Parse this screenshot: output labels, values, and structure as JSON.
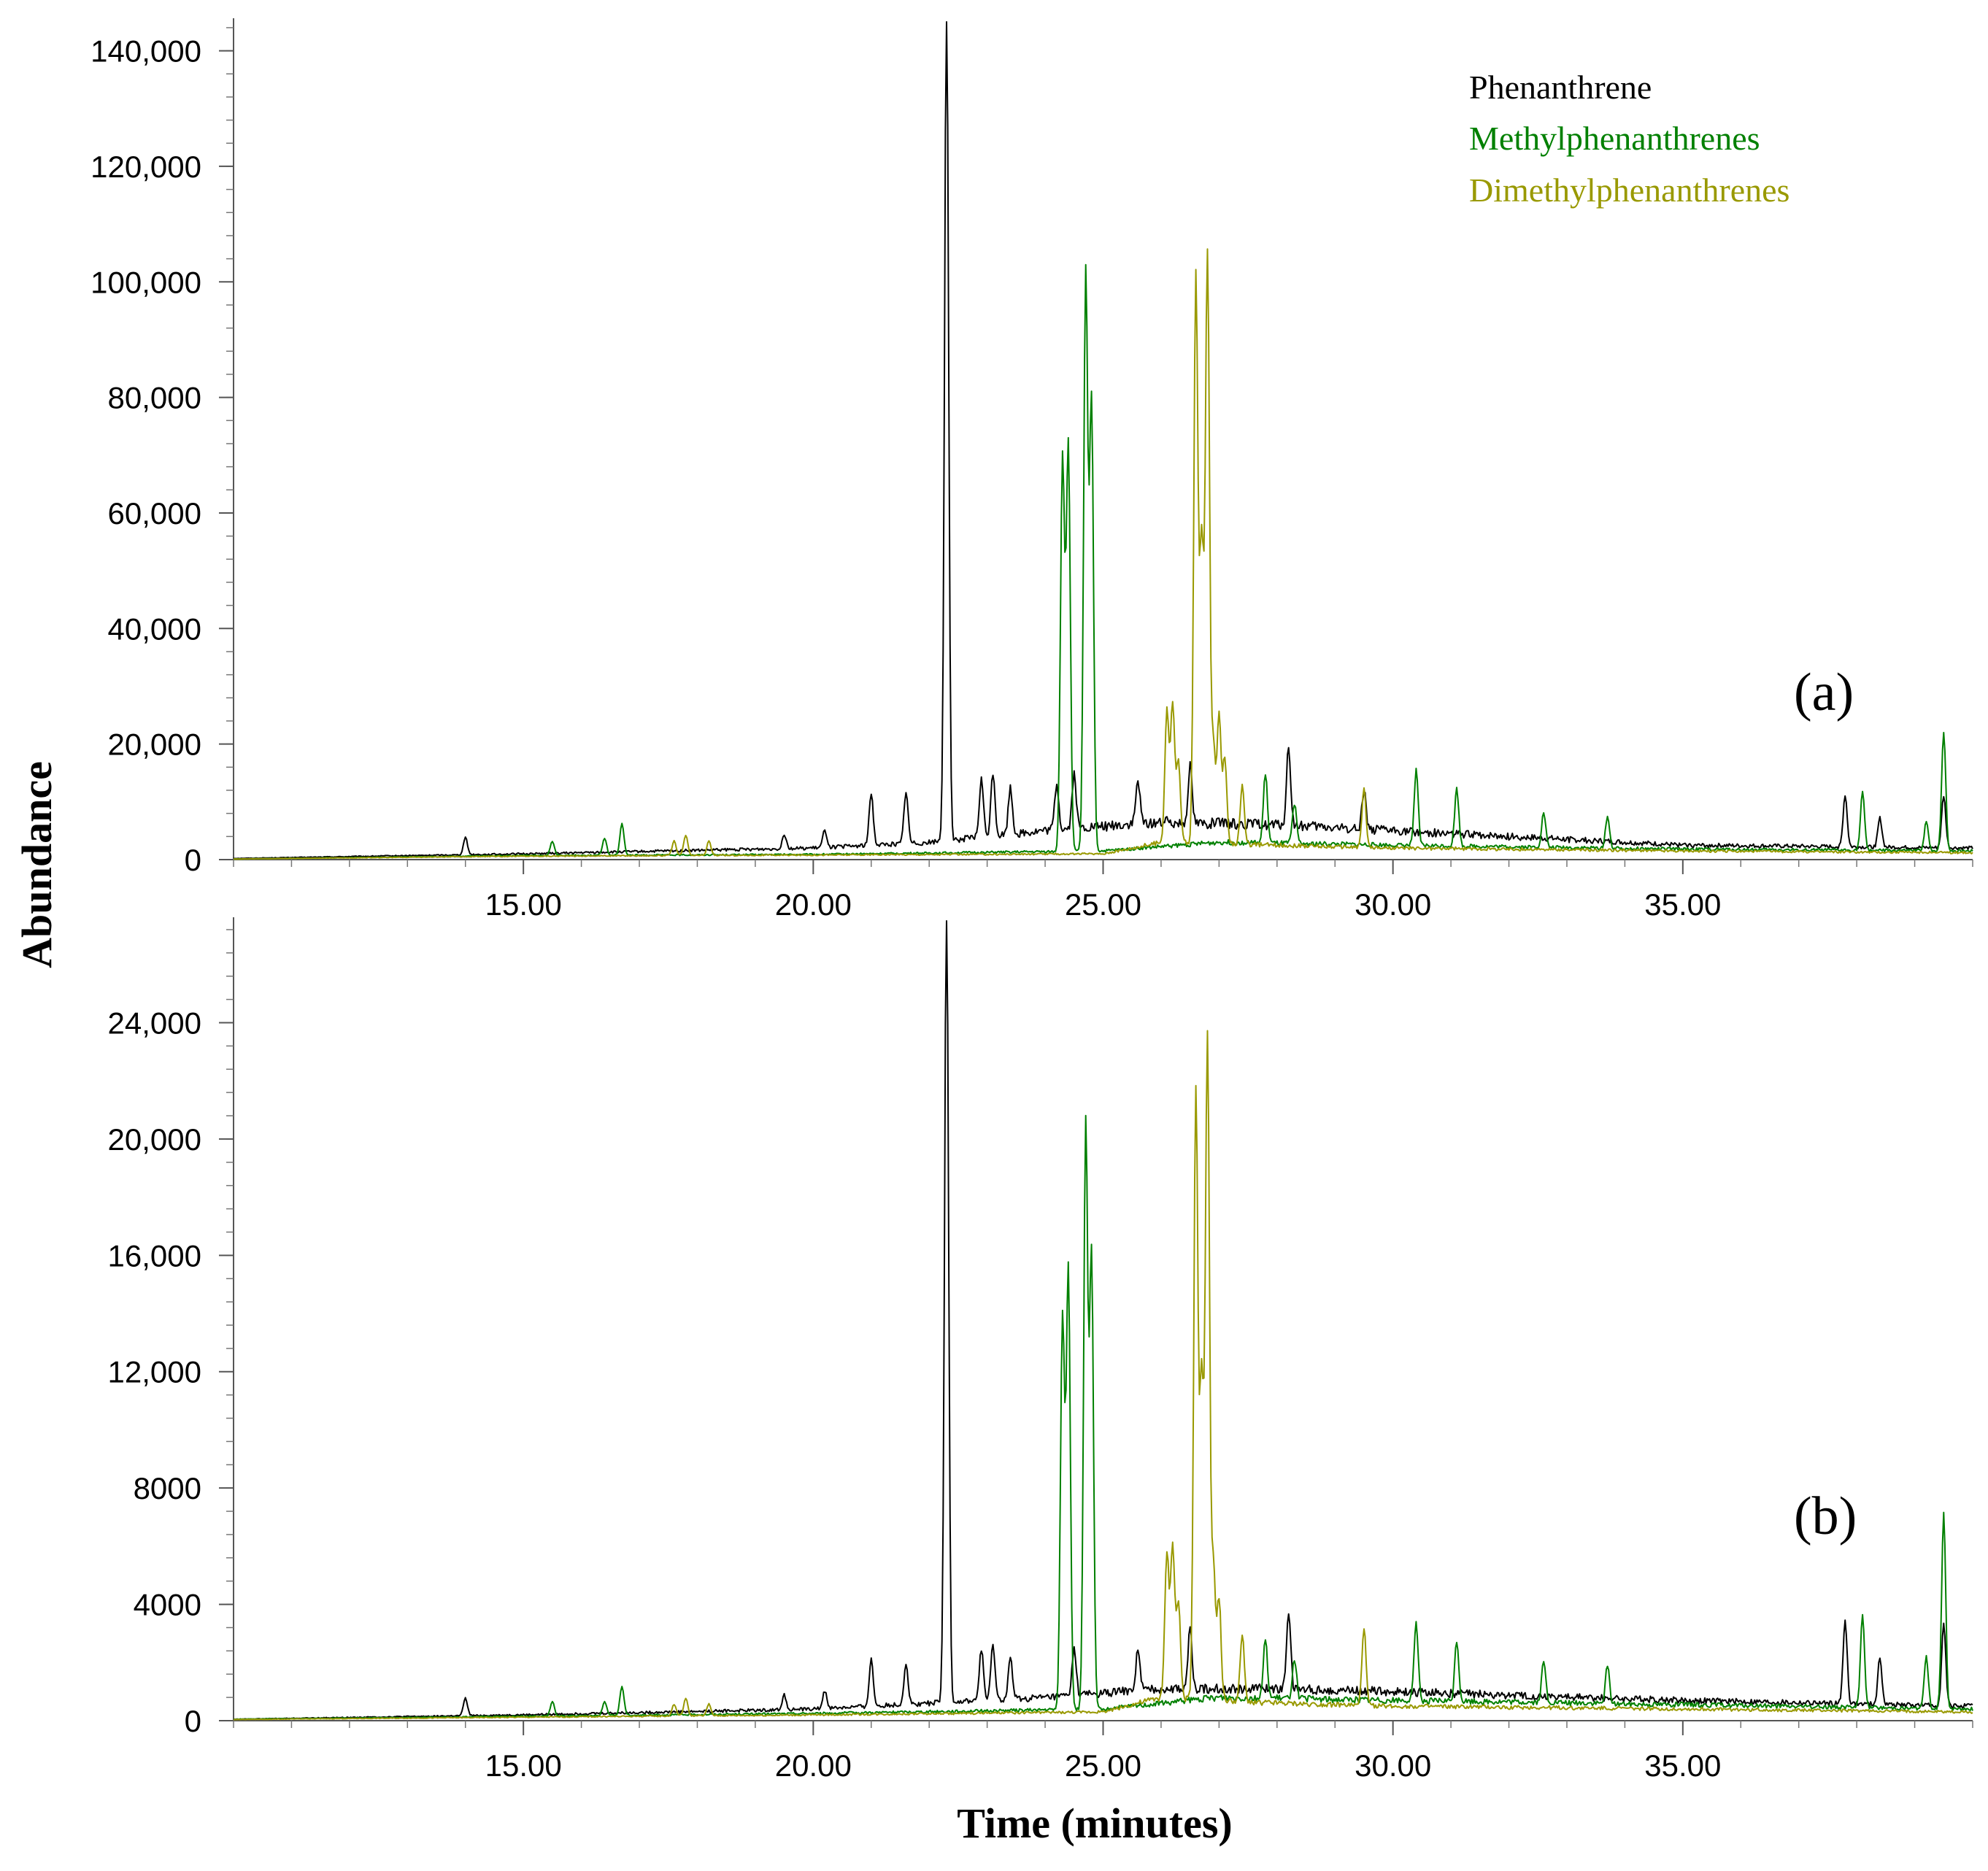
{
  "chart_data": [
    {
      "type": "line",
      "panel_label": "(a)",
      "ylabel": "Abundance",
      "xlabel": "Time (minutes)",
      "xlim": [
        10.0,
        40.0
      ],
      "ylim": [
        0,
        145000
      ],
      "x_ticks": [
        15,
        20,
        25,
        30,
        35
      ],
      "x_tick_labels": [
        "15.00",
        "20.00",
        "25.00",
        "30.00",
        "35.00"
      ],
      "y_ticks": [
        0,
        20000,
        40000,
        60000,
        80000,
        100000,
        120000,
        140000
      ],
      "y_tick_labels": [
        "0",
        "20,000",
        "40,000",
        "60,000",
        "80,000",
        "100,000",
        "120,000",
        "140,000"
      ],
      "legend": {
        "placement": "top-right",
        "entries": [
          "Phenanthrene",
          "Methylphenanthrenes",
          "Dimethylphenanthrenes"
        ]
      },
      "series": [
        {
          "name": "Phenanthrene",
          "color": "#000000",
          "baseline": [
            [
              10.0,
              200
            ],
            [
              15.0,
              1000
            ],
            [
              20.0,
              2000
            ],
            [
              22.0,
              3000
            ],
            [
              24.0,
              5000
            ],
            [
              26.0,
              6500
            ],
            [
              28.0,
              6000
            ],
            [
              30.0,
              5000
            ],
            [
              35.0,
              2500
            ],
            [
              40.0,
              2000
            ]
          ],
          "peaks": [
            [
              14.0,
              3000
            ],
            [
              19.5,
              2500
            ],
            [
              20.2,
              3000
            ],
            [
              21.0,
              9000
            ],
            [
              21.6,
              9000
            ],
            [
              22.3,
              145000
            ],
            [
              22.9,
              10000
            ],
            [
              23.1,
              11000
            ],
            [
              23.4,
              8000
            ],
            [
              24.2,
              8000
            ],
            [
              24.5,
              9500
            ],
            [
              25.6,
              7500
            ],
            [
              26.5,
              10000
            ],
            [
              28.2,
              13500
            ],
            [
              29.5,
              7000
            ],
            [
              37.8,
              9000
            ],
            [
              38.4,
              5000
            ],
            [
              39.5,
              9000
            ]
          ]
        },
        {
          "name": "Methylphenanthrenes",
          "color": "#008000",
          "baseline": [
            [
              10.0,
              100
            ],
            [
              15.0,
              700
            ],
            [
              20.0,
              900
            ],
            [
              25.0,
              1500
            ],
            [
              27.0,
              3000
            ],
            [
              30.0,
              2500
            ],
            [
              35.0,
              1800
            ],
            [
              40.0,
              1500
            ]
          ],
          "peaks": [
            [
              15.5,
              2500
            ],
            [
              16.4,
              3000
            ],
            [
              16.7,
              5500
            ],
            [
              24.3,
              68000
            ],
            [
              24.4,
              70500
            ],
            [
              24.7,
              100000
            ],
            [
              24.8,
              78000
            ],
            [
              27.8,
              12000
            ],
            [
              28.3,
              7000
            ],
            [
              30.4,
              13000
            ],
            [
              31.1,
              10000
            ],
            [
              32.6,
              6000
            ],
            [
              33.7,
              5500
            ],
            [
              38.1,
              10000
            ],
            [
              39.2,
              5000
            ],
            [
              39.5,
              20500
            ]
          ]
        },
        {
          "name": "Dimethylphenanthrenes",
          "color": "#999900",
          "baseline": [
            [
              10.0,
              100
            ],
            [
              15.0,
              600
            ],
            [
              20.0,
              800
            ],
            [
              25.0,
              1000
            ],
            [
              26.0,
              3000
            ],
            [
              28.0,
              2500
            ],
            [
              30.0,
              2000
            ],
            [
              35.0,
              1500
            ],
            [
              40.0,
              1200
            ]
          ],
          "peaks": [
            [
              17.6,
              2500
            ],
            [
              17.8,
              3500
            ],
            [
              18.2,
              2500
            ],
            [
              26.1,
              23000
            ],
            [
              26.2,
              24000
            ],
            [
              26.3,
              14000
            ],
            [
              26.6,
              98000
            ],
            [
              26.7,
              52000
            ],
            [
              26.8,
              102000
            ],
            [
              26.9,
              17000
            ],
            [
              27.0,
              22000
            ],
            [
              27.1,
              15000
            ],
            [
              27.4,
              10000
            ],
            [
              29.5,
              10000
            ]
          ]
        }
      ]
    },
    {
      "type": "line",
      "panel_label": "(b)",
      "ylabel": "Abundance",
      "xlabel": "Time (minutes)",
      "xlim": [
        10.0,
        40.0
      ],
      "ylim": [
        0,
        27500
      ],
      "x_ticks": [
        15,
        20,
        25,
        30,
        35
      ],
      "x_tick_labels": [
        "15.00",
        "20.00",
        "25.00",
        "30.00",
        "35.00"
      ],
      "y_ticks": [
        0,
        4000,
        8000,
        12000,
        16000,
        20000,
        24000
      ],
      "y_tick_labels": [
        "0",
        "4000",
        "8000",
        "12,000",
        "16,000",
        "20,000",
        "24,000"
      ],
      "series": [
        {
          "name": "Phenanthrene",
          "color": "#000000",
          "baseline": [
            [
              10.0,
              50
            ],
            [
              15.0,
              200
            ],
            [
              20.0,
              400
            ],
            [
              22.0,
              600
            ],
            [
              24.0,
              800
            ],
            [
              26.0,
              1100
            ],
            [
              28.0,
              1100
            ],
            [
              30.0,
              1000
            ],
            [
              35.0,
              700
            ],
            [
              40.0,
              500
            ]
          ],
          "peaks": [
            [
              14.0,
              600
            ],
            [
              19.5,
              500
            ],
            [
              20.2,
              600
            ],
            [
              21.0,
              1600
            ],
            [
              21.6,
              1400
            ],
            [
              22.3,
              27500
            ],
            [
              22.9,
              1800
            ],
            [
              23.1,
              1900
            ],
            [
              23.4,
              1400
            ],
            [
              24.5,
              1600
            ],
            [
              25.6,
              1400
            ],
            [
              26.5,
              2000
            ],
            [
              28.2,
              2700
            ],
            [
              37.8,
              2900
            ],
            [
              38.4,
              1600
            ],
            [
              39.5,
              2800
            ]
          ]
        },
        {
          "name": "Methylphenanthrenes",
          "color": "#008000",
          "baseline": [
            [
              10.0,
              50
            ],
            [
              15.0,
              150
            ],
            [
              20.0,
              250
            ],
            [
              25.0,
              400
            ],
            [
              27.0,
              800
            ],
            [
              30.0,
              700
            ],
            [
              35.0,
              550
            ],
            [
              40.0,
              400
            ]
          ],
          "peaks": [
            [
              15.5,
              500
            ],
            [
              16.4,
              500
            ],
            [
              16.7,
              1000
            ],
            [
              24.3,
              13500
            ],
            [
              24.4,
              15200
            ],
            [
              24.7,
              20200
            ],
            [
              24.8,
              15600
            ],
            [
              27.8,
              2000
            ],
            [
              28.3,
              1400
            ],
            [
              30.4,
              2700
            ],
            [
              31.1,
              2100
            ],
            [
              32.6,
              1400
            ],
            [
              33.7,
              1300
            ],
            [
              38.1,
              3200
            ],
            [
              39.2,
              1800
            ],
            [
              39.5,
              6700
            ]
          ]
        },
        {
          "name": "Dimethylphenanthrenes",
          "color": "#999900",
          "baseline": [
            [
              10.0,
              40
            ],
            [
              15.0,
              120
            ],
            [
              20.0,
              200
            ],
            [
              25.0,
              300
            ],
            [
              26.0,
              800
            ],
            [
              28.0,
              600
            ],
            [
              30.0,
              500
            ],
            [
              35.0,
              400
            ],
            [
              40.0,
              300
            ]
          ],
          "peaks": [
            [
              17.6,
              400
            ],
            [
              17.8,
              600
            ],
            [
              18.2,
              400
            ],
            [
              26.1,
              5000
            ],
            [
              26.2,
              5300
            ],
            [
              26.3,
              3300
            ],
            [
              26.6,
              21000
            ],
            [
              26.7,
              11000
            ],
            [
              26.8,
              22800
            ],
            [
              26.9,
              4700
            ],
            [
              27.0,
              3500
            ],
            [
              27.4,
              2300
            ],
            [
              29.5,
              2700
            ]
          ]
        }
      ]
    }
  ]
}
